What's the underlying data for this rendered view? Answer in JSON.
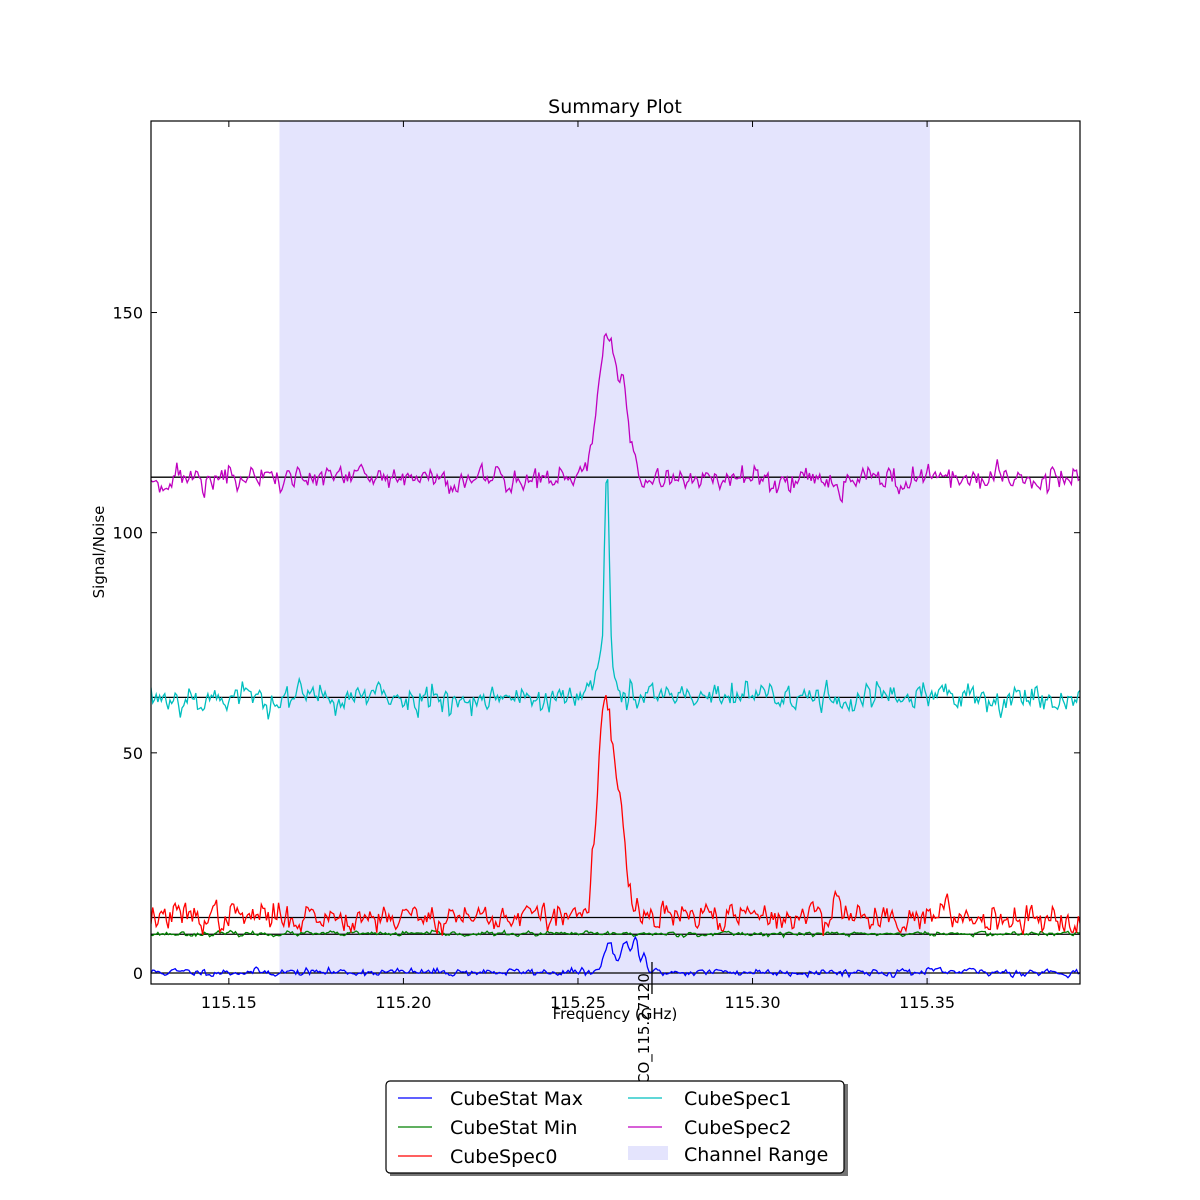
{
  "chart_data": {
    "type": "line",
    "title": "Summary Plot",
    "xlabel": "Frequency (GHz)",
    "ylabel": "Signal/Noise",
    "xlim": [
      115.1277,
      115.3938
    ],
    "ylim": [
      -2.5,
      193.5
    ],
    "xticks": [
      {
        "value": 115.15,
        "label": "115.15"
      },
      {
        "value": 115.2,
        "label": "115.20"
      },
      {
        "value": 115.25,
        "label": "115.25"
      },
      {
        "value": 115.3,
        "label": "115.30"
      },
      {
        "value": 115.35,
        "label": "115.35"
      }
    ],
    "yticks": [
      {
        "value": 0,
        "label": "0"
      },
      {
        "value": 50,
        "label": "50"
      },
      {
        "value": 100,
        "label": "100"
      },
      {
        "value": 150,
        "label": "150"
      }
    ],
    "channel_range": {
      "name": "Channel Range",
      "x": [
        115.1645,
        115.3508
      ],
      "color": "#e4e4fd"
    },
    "baselines": [
      0,
      8.8,
      12.6,
      62.6,
      112.6
    ],
    "line_marker": {
      "x": 115.2712,
      "label": "CO_115.27120"
    },
    "series": [
      {
        "name": "CubeStat Max",
        "color": "#0000ff",
        "base": 0.2,
        "noise": 0.55,
        "seed": 11,
        "features": [
          {
            "center": 115.259,
            "width": 0.0014,
            "height": 6.5
          },
          {
            "center": 115.2635,
            "width": 0.0012,
            "height": 6.2
          },
          {
            "center": 115.2665,
            "width": 0.0009,
            "height": 7.2
          },
          {
            "center": 115.269,
            "width": 0.0006,
            "height": 4.0
          }
        ]
      },
      {
        "name": "CubeStat Min",
        "color": "#008000",
        "base": 8.9,
        "noise": 0.35,
        "seed": 23,
        "features": []
      },
      {
        "name": "CubeSpec0",
        "color": "#ff0000",
        "base": 12.8,
        "noise": 2.1,
        "seed": 37,
        "features": [
          {
            "center": 115.258,
            "width": 0.0024,
            "height": 47.5
          },
          {
            "center": 115.2625,
            "width": 0.0016,
            "height": 15.0
          },
          {
            "center": 115.324,
            "width": 0.001,
            "height": 5.5
          }
        ]
      },
      {
        "name": "CubeSpec1",
        "color": "#00bfbf",
        "base": 62.6,
        "noise": 2.2,
        "seed": 53,
        "features": [
          {
            "center": 115.2583,
            "width": 0.0007,
            "height": 47.0
          },
          {
            "center": 115.257,
            "width": 0.0018,
            "height": 7.5
          }
        ]
      },
      {
        "name": "CubeSpec2",
        "color": "#bf00bf",
        "base": 112.3,
        "noise": 2.0,
        "seed": 71,
        "features": [
          {
            "center": 115.2583,
            "width": 0.0025,
            "height": 33.0
          },
          {
            "center": 115.263,
            "width": 0.0017,
            "height": 15.5
          }
        ]
      }
    ],
    "legend": {
      "placement": "bottom-center, below the axes",
      "columns": 2
    }
  }
}
